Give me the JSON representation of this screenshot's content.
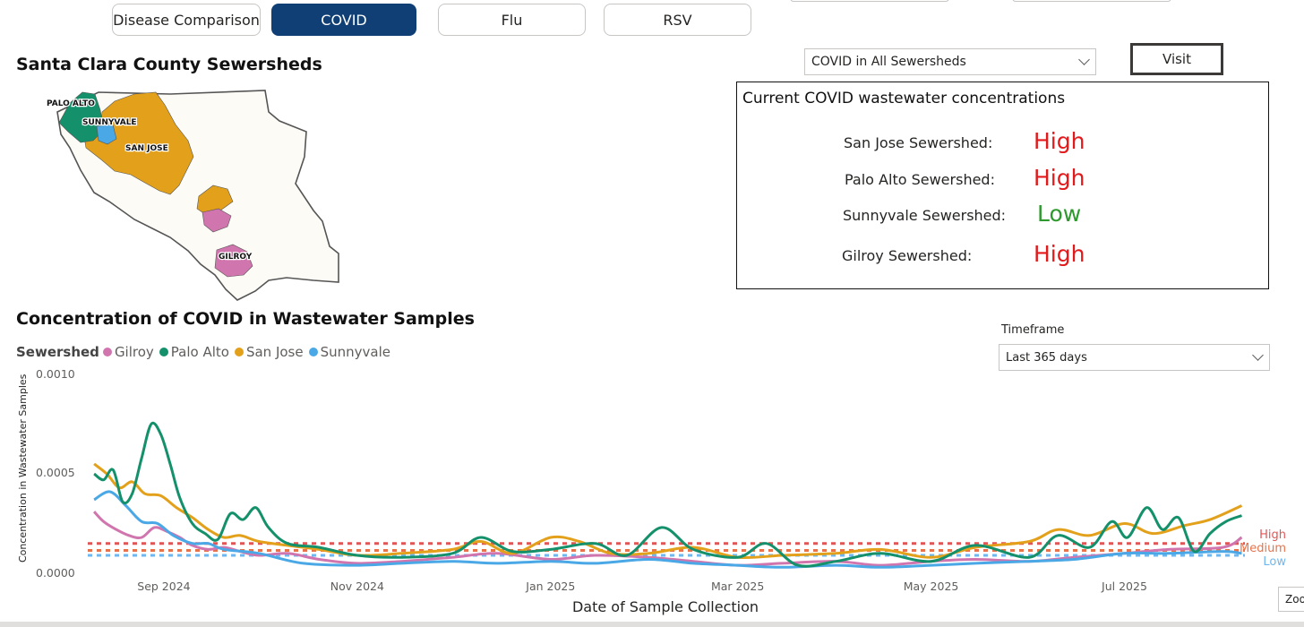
{
  "tabs": [
    {
      "label": "Disease Comparison",
      "active": false
    },
    {
      "label": "COVID",
      "active": true
    },
    {
      "label": "Flu",
      "active": false
    },
    {
      "label": "RSV",
      "active": false
    }
  ],
  "map_section": {
    "title": "Santa Clara County Sewersheds",
    "labels": {
      "palo_alto": "PALO ALTO",
      "sunnyvale": "SUNNYVALE",
      "san_jose": "SAN JOSE",
      "gilroy": "GILROY"
    }
  },
  "sewershed_select": {
    "value": "COVID in All Sewersheds"
  },
  "visit_button": {
    "label": "Visit"
  },
  "current_panel": {
    "title": "Current COVID wastewater concentrations",
    "rows": [
      {
        "label": "San Jose Sewershed:",
        "level": "High",
        "color": "#e31a1c"
      },
      {
        "label": "Palo Alto Sewershed:",
        "level": "High",
        "color": "#e31a1c"
      },
      {
        "label": "Sunnyvale Sewershed:",
        "level": "Low",
        "color": "#2e9a2e"
      },
      {
        "label": "Gilroy Sewershed:",
        "level": "High",
        "color": "#e31a1c"
      }
    ]
  },
  "timeframe": {
    "label": "Timeframe",
    "value": "Last 365 days"
  },
  "zoom_label": "Zoo",
  "colors": {
    "gilroy": "#d175ae",
    "palo_alto": "#14906a",
    "san_jose": "#e3a11b",
    "sunnyvale": "#4aa8e6",
    "tab_active": "#0f3f75",
    "high": "#e05555",
    "medium": "#e8734a",
    "low": "#6fb7ee"
  },
  "chart_data": {
    "type": "line",
    "title": "Concentration of COVID in Wastewater Samples",
    "legend_title": "Sewershed",
    "legend_placement": "top-left",
    "xlabel": "Date of Sample Collection",
    "ylabel": "Concentration in Wastewater Samples",
    "ylim": [
      0,
      0.001
    ],
    "y_ticks": [
      {
        "value": 0,
        "label": "0.0000"
      },
      {
        "value": 0.0005,
        "label": "0.0005"
      },
      {
        "value": 0.001,
        "label": "0.0010"
      }
    ],
    "x_ticks": [
      {
        "date": "2024-09-01",
        "label": "Sep 2024"
      },
      {
        "date": "2024-11-01",
        "label": "Nov 2024"
      },
      {
        "date": "2025-01-01",
        "label": "Jan 2025"
      },
      {
        "date": "2025-03-01",
        "label": "Mar 2025"
      },
      {
        "date": "2025-05-01",
        "label": "May 2025"
      },
      {
        "date": "2025-07-01",
        "label": "Jul 2025"
      }
    ],
    "xlim": [
      "2024-08-08",
      "2025-08-08"
    ],
    "thresholds": [
      {
        "name": "High",
        "value": 0.00015,
        "color": "#e05555"
      },
      {
        "name": "Medium",
        "value": 0.000115,
        "color": "#e8734a"
      },
      {
        "name": "Low",
        "value": 9e-05,
        "color": "#6fb7ee"
      }
    ],
    "series": [
      {
        "name": "Gilroy",
        "color": "#d175ae",
        "points": [
          [
            "2024-08-10",
            0.00031
          ],
          [
            "2024-08-13",
            0.00026
          ],
          [
            "2024-08-17",
            0.00022
          ],
          [
            "2024-08-21",
            0.00019
          ],
          [
            "2024-08-25",
            0.00018
          ],
          [
            "2024-08-29",
            0.00023
          ],
          [
            "2024-09-02",
            0.00021
          ],
          [
            "2024-09-06",
            0.00018
          ],
          [
            "2024-09-10",
            0.00014
          ],
          [
            "2024-09-15",
            0.00012
          ],
          [
            "2024-09-20",
            0.00013
          ],
          [
            "2024-09-25",
            0.00011
          ],
          [
            "2024-10-01",
            9e-05
          ],
          [
            "2024-10-10",
            0.0001
          ],
          [
            "2024-10-20",
            7e-05
          ],
          [
            "2024-11-01",
            5e-05
          ],
          [
            "2024-11-15",
            6e-05
          ],
          [
            "2024-12-01",
            8e-05
          ],
          [
            "2024-12-15",
            0.0001
          ],
          [
            "2025-01-01",
            7e-05
          ],
          [
            "2025-01-15",
            9e-05
          ],
          [
            "2025-02-01",
            8e-05
          ],
          [
            "2025-02-15",
            6e-05
          ],
          [
            "2025-03-01",
            4e-05
          ],
          [
            "2025-03-15",
            5e-05
          ],
          [
            "2025-04-01",
            6e-05
          ],
          [
            "2025-04-15",
            4e-05
          ],
          [
            "2025-05-01",
            6e-05
          ],
          [
            "2025-05-15",
            7e-05
          ],
          [
            "2025-06-01",
            6e-05
          ],
          [
            "2025-06-15",
            8e-05
          ],
          [
            "2025-07-01",
            0.0001
          ],
          [
            "2025-07-15",
            0.00012
          ],
          [
            "2025-08-01",
            0.00013
          ],
          [
            "2025-08-07",
            0.00018
          ]
        ]
      },
      {
        "name": "Palo Alto",
        "color": "#14906a",
        "points": [
          [
            "2024-08-10",
            0.0005
          ],
          [
            "2024-08-13",
            0.00047
          ],
          [
            "2024-08-16",
            0.00052
          ],
          [
            "2024-08-19",
            0.00036
          ],
          [
            "2024-08-22",
            0.0004
          ],
          [
            "2024-08-25",
            0.00058
          ],
          [
            "2024-08-28",
            0.00075
          ],
          [
            "2024-08-31",
            0.0007
          ],
          [
            "2024-09-03",
            0.00055
          ],
          [
            "2024-09-06",
            0.00038
          ],
          [
            "2024-09-10",
            0.00025
          ],
          [
            "2024-09-14",
            0.0002
          ],
          [
            "2024-09-18",
            0.00017
          ],
          [
            "2024-09-22",
            0.0003
          ],
          [
            "2024-09-26",
            0.00027
          ],
          [
            "2024-09-30",
            0.00033
          ],
          [
            "2024-10-04",
            0.00023
          ],
          [
            "2024-10-10",
            0.00015
          ],
          [
            "2024-10-20",
            0.00013
          ],
          [
            "2024-11-01",
            9e-05
          ],
          [
            "2024-11-15",
            8e-05
          ],
          [
            "2024-12-01",
            0.0001
          ],
          [
            "2024-12-10",
            0.00018
          ],
          [
            "2024-12-20",
            0.00011
          ],
          [
            "2025-01-01",
            0.00012
          ],
          [
            "2025-01-15",
            0.00015
          ],
          [
            "2025-01-25",
            9e-05
          ],
          [
            "2025-02-05",
            0.00023
          ],
          [
            "2025-02-15",
            0.00012
          ],
          [
            "2025-03-01",
            8e-05
          ],
          [
            "2025-03-10",
            0.00015
          ],
          [
            "2025-03-20",
            4e-05
          ],
          [
            "2025-04-01",
            6e-05
          ],
          [
            "2025-04-15",
            0.0001
          ],
          [
            "2025-05-01",
            6e-05
          ],
          [
            "2025-05-15",
            0.00014
          ],
          [
            "2025-06-01",
            8e-05
          ],
          [
            "2025-06-10",
            0.00019
          ],
          [
            "2025-06-20",
            0.00013
          ],
          [
            "2025-06-27",
            0.00026
          ],
          [
            "2025-07-02",
            0.00018
          ],
          [
            "2025-07-08",
            0.00033
          ],
          [
            "2025-07-13",
            0.00022
          ],
          [
            "2025-07-18",
            0.00028
          ],
          [
            "2025-07-23",
            0.00011
          ],
          [
            "2025-07-28",
            0.0002
          ],
          [
            "2025-08-02",
            0.00026
          ],
          [
            "2025-08-07",
            0.00029
          ]
        ]
      },
      {
        "name": "San Jose",
        "color": "#e3a11b",
        "points": [
          [
            "2024-08-10",
            0.00055
          ],
          [
            "2024-08-14",
            0.0005
          ],
          [
            "2024-08-18",
            0.00043
          ],
          [
            "2024-08-22",
            0.00046
          ],
          [
            "2024-08-26",
            0.0004
          ],
          [
            "2024-08-31",
            0.00039
          ],
          [
            "2024-09-05",
            0.00033
          ],
          [
            "2024-09-10",
            0.00028
          ],
          [
            "2024-09-15",
            0.00022
          ],
          [
            "2024-09-20",
            0.00018
          ],
          [
            "2024-09-25",
            0.00019
          ],
          [
            "2024-10-01",
            0.00016
          ],
          [
            "2024-10-10",
            0.00014
          ],
          [
            "2024-10-20",
            0.00012
          ],
          [
            "2024-11-01",
            9e-05
          ],
          [
            "2024-11-15",
            0.0001
          ],
          [
            "2024-12-01",
            0.00012
          ],
          [
            "2024-12-10",
            0.00016
          ],
          [
            "2024-12-20",
            0.0001
          ],
          [
            "2025-01-01",
            0.00018
          ],
          [
            "2025-01-10",
            0.00016
          ],
          [
            "2025-01-20",
            0.0001
          ],
          [
            "2025-02-01",
            0.0001
          ],
          [
            "2025-02-15",
            0.00013
          ],
          [
            "2025-03-01",
            8e-05
          ],
          [
            "2025-03-15",
            9e-05
          ],
          [
            "2025-04-01",
            0.0001
          ],
          [
            "2025-04-15",
            0.00012
          ],
          [
            "2025-05-01",
            8e-05
          ],
          [
            "2025-05-15",
            0.00013
          ],
          [
            "2025-06-01",
            0.00016
          ],
          [
            "2025-06-10",
            0.00022
          ],
          [
            "2025-06-20",
            0.00019
          ],
          [
            "2025-07-01",
            0.00025
          ],
          [
            "2025-07-10",
            0.0002
          ],
          [
            "2025-07-20",
            0.00024
          ],
          [
            "2025-07-28",
            0.00027
          ],
          [
            "2025-08-07",
            0.00034
          ]
        ]
      },
      {
        "name": "Sunnyvale",
        "color": "#4aa8e6",
        "points": [
          [
            "2024-08-10",
            0.00037
          ],
          [
            "2024-08-15",
            0.00041
          ],
          [
            "2024-08-20",
            0.00034
          ],
          [
            "2024-08-25",
            0.00026
          ],
          [
            "2024-08-30",
            0.00025
          ],
          [
            "2024-09-04",
            0.00019
          ],
          [
            "2024-09-10",
            0.00015
          ],
          [
            "2024-09-15",
            0.00015
          ],
          [
            "2024-09-20",
            0.00012
          ],
          [
            "2024-10-01",
            0.0001
          ],
          [
            "2024-10-15",
            5e-05
          ],
          [
            "2024-11-01",
            4e-05
          ],
          [
            "2024-11-15",
            5e-05
          ],
          [
            "2024-12-01",
            6e-05
          ],
          [
            "2024-12-15",
            5e-05
          ],
          [
            "2025-01-01",
            6e-05
          ],
          [
            "2025-01-15",
            5e-05
          ],
          [
            "2025-02-01",
            7e-05
          ],
          [
            "2025-02-15",
            5e-05
          ],
          [
            "2025-03-01",
            4e-05
          ],
          [
            "2025-03-15",
            3e-05
          ],
          [
            "2025-04-01",
            4e-05
          ],
          [
            "2025-04-15",
            3e-05
          ],
          [
            "2025-05-01",
            4e-05
          ],
          [
            "2025-05-15",
            5e-05
          ],
          [
            "2025-06-01",
            6e-05
          ],
          [
            "2025-06-15",
            7e-05
          ],
          [
            "2025-07-01",
            0.0001
          ],
          [
            "2025-07-15",
            0.0001
          ],
          [
            "2025-08-01",
            0.00011
          ],
          [
            "2025-08-07",
            0.0001
          ]
        ]
      }
    ]
  }
}
